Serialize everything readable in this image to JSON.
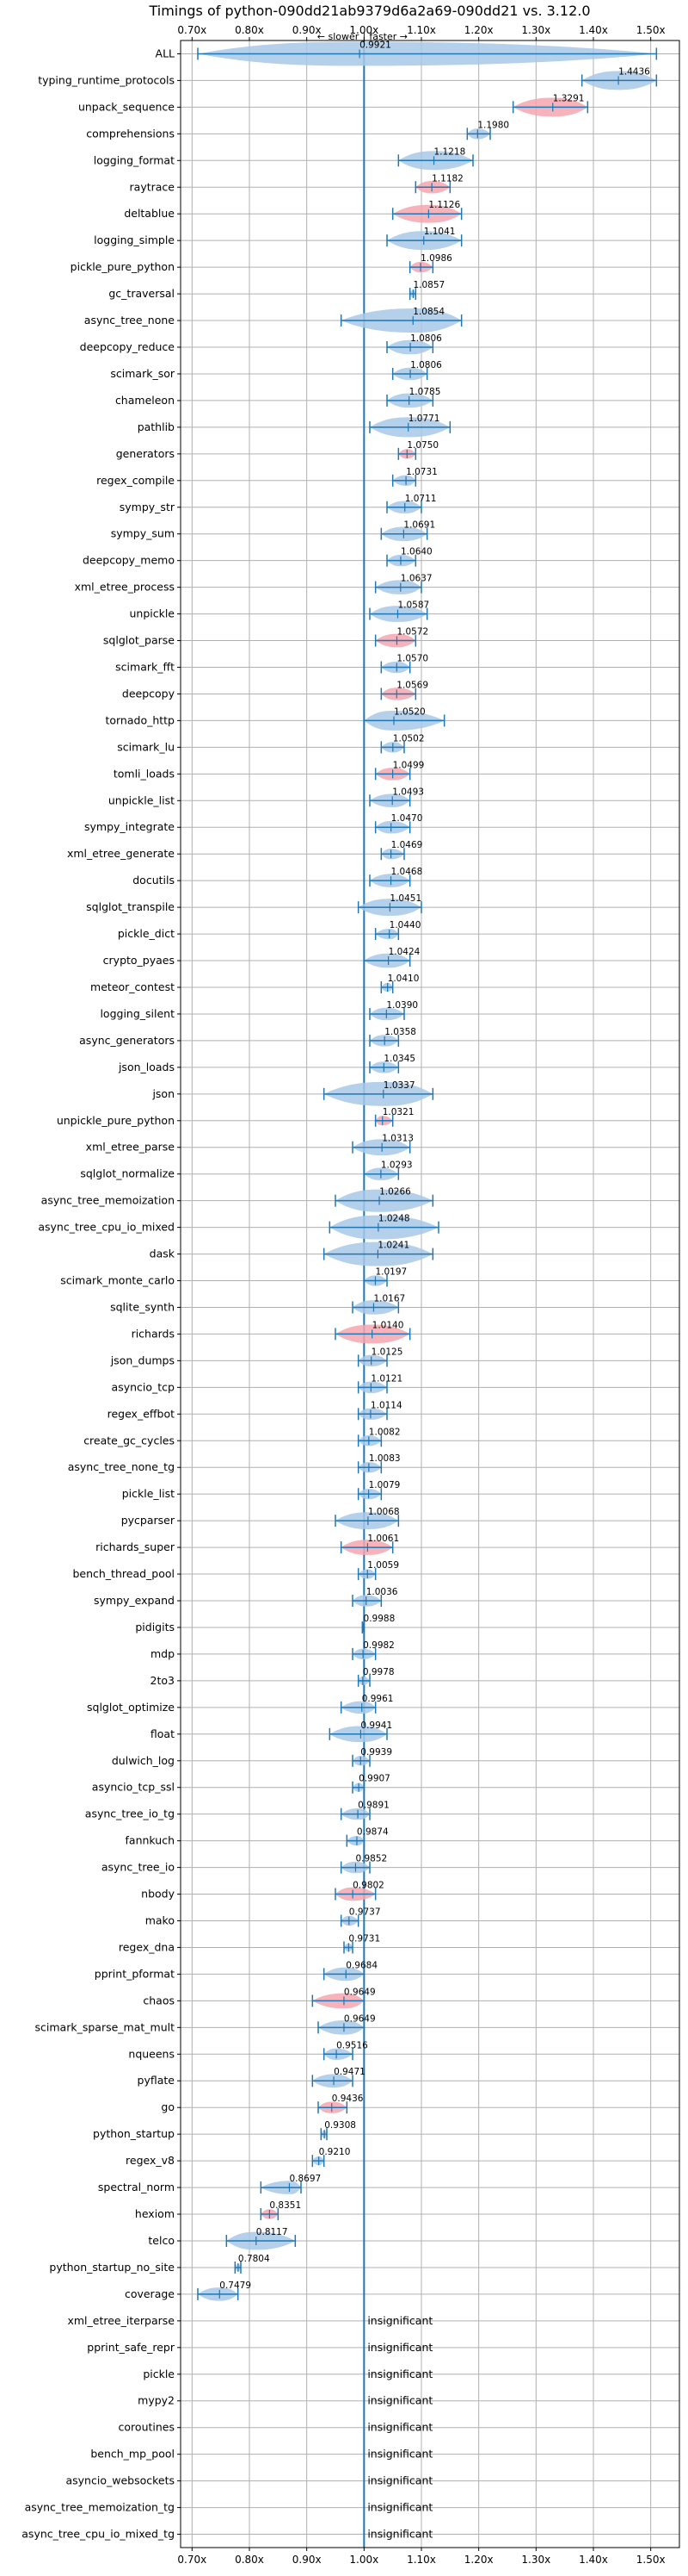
{
  "chart_data": {
    "type": "violin",
    "title": "Timings of python-090dd21ab9379d6a2a69-090dd21 vs. 3.12.0",
    "direction_slower": "← slower",
    "direction_faster": "faster →",
    "direction_separator": "|",
    "xlim": [
      0.68,
      1.55
    ],
    "x_ticks": [
      {
        "value": 0.7,
        "label": "0.70x"
      },
      {
        "value": 0.8,
        "label": "0.80x"
      },
      {
        "value": 0.9,
        "label": "0.90x"
      },
      {
        "value": 1.0,
        "label": "1.00x"
      },
      {
        "value": 1.1,
        "label": "1.10x"
      },
      {
        "value": 1.2,
        "label": "1.20x"
      },
      {
        "value": 1.3,
        "label": "1.30x"
      },
      {
        "value": 1.4,
        "label": "1.40x"
      },
      {
        "value": 1.5,
        "label": "1.50x"
      }
    ],
    "reference_line": 1.0,
    "insignificant_text": "insignificant",
    "benchmarks": [
      {
        "name": "ALL",
        "value": 0.9921,
        "label": "0.9921",
        "lo": 0.71,
        "hi": 1.51,
        "color": "blue"
      },
      {
        "name": "typing_runtime_protocols",
        "value": 1.4436,
        "label": "1.4436",
        "lo": 1.38,
        "hi": 1.51,
        "color": "blue"
      },
      {
        "name": "unpack_sequence",
        "value": 1.3291,
        "label": "1.3291",
        "lo": 1.26,
        "hi": 1.39,
        "color": "red"
      },
      {
        "name": "comprehensions",
        "value": 1.198,
        "label": "1.1980",
        "lo": 1.18,
        "hi": 1.22,
        "color": "blue"
      },
      {
        "name": "logging_format",
        "value": 1.1218,
        "label": "1.1218",
        "lo": 1.06,
        "hi": 1.19,
        "color": "blue"
      },
      {
        "name": "raytrace",
        "value": 1.1182,
        "label": "1.1182",
        "lo": 1.09,
        "hi": 1.15,
        "color": "red"
      },
      {
        "name": "deltablue",
        "value": 1.1126,
        "label": "1.1126",
        "lo": 1.05,
        "hi": 1.17,
        "color": "red"
      },
      {
        "name": "logging_simple",
        "value": 1.1041,
        "label": "1.1041",
        "lo": 1.04,
        "hi": 1.17,
        "color": "blue"
      },
      {
        "name": "pickle_pure_python",
        "value": 1.0986,
        "label": "1.0986",
        "lo": 1.08,
        "hi": 1.12,
        "color": "red"
      },
      {
        "name": "gc_traversal",
        "value": 1.0857,
        "label": "1.0857",
        "lo": 1.08,
        "hi": 1.09,
        "color": "blue"
      },
      {
        "name": "async_tree_none",
        "value": 1.0854,
        "label": "1.0854",
        "lo": 0.96,
        "hi": 1.17,
        "color": "blue"
      },
      {
        "name": "deepcopy_reduce",
        "value": 1.0806,
        "label": "1.0806",
        "lo": 1.04,
        "hi": 1.12,
        "color": "blue"
      },
      {
        "name": "scimark_sor",
        "value": 1.0806,
        "label": "1.0806",
        "lo": 1.05,
        "hi": 1.11,
        "color": "blue"
      },
      {
        "name": "chameleon",
        "value": 1.0785,
        "label": "1.0785",
        "lo": 1.04,
        "hi": 1.12,
        "color": "blue"
      },
      {
        "name": "pathlib",
        "value": 1.0771,
        "label": "1.0771",
        "lo": 1.01,
        "hi": 1.15,
        "color": "blue"
      },
      {
        "name": "generators",
        "value": 1.075,
        "label": "1.0750",
        "lo": 1.06,
        "hi": 1.09,
        "color": "red"
      },
      {
        "name": "regex_compile",
        "value": 1.0731,
        "label": "1.0731",
        "lo": 1.05,
        "hi": 1.09,
        "color": "blue"
      },
      {
        "name": "sympy_str",
        "value": 1.0711,
        "label": "1.0711",
        "lo": 1.04,
        "hi": 1.1,
        "color": "blue"
      },
      {
        "name": "sympy_sum",
        "value": 1.0691,
        "label": "1.0691",
        "lo": 1.03,
        "hi": 1.11,
        "color": "blue"
      },
      {
        "name": "deepcopy_memo",
        "value": 1.064,
        "label": "1.0640",
        "lo": 1.04,
        "hi": 1.09,
        "color": "blue"
      },
      {
        "name": "xml_etree_process",
        "value": 1.0637,
        "label": "1.0637",
        "lo": 1.02,
        "hi": 1.1,
        "color": "blue"
      },
      {
        "name": "unpickle",
        "value": 1.0587,
        "label": "1.0587",
        "lo": 1.01,
        "hi": 1.11,
        "color": "blue"
      },
      {
        "name": "sqlglot_parse",
        "value": 1.0572,
        "label": "1.0572",
        "lo": 1.02,
        "hi": 1.09,
        "color": "red"
      },
      {
        "name": "scimark_fft",
        "value": 1.057,
        "label": "1.0570",
        "lo": 1.03,
        "hi": 1.08,
        "color": "blue"
      },
      {
        "name": "deepcopy",
        "value": 1.0569,
        "label": "1.0569",
        "lo": 1.03,
        "hi": 1.09,
        "color": "red"
      },
      {
        "name": "tornado_http",
        "value": 1.052,
        "label": "1.0520",
        "lo": 1.0,
        "hi": 1.14,
        "color": "blue"
      },
      {
        "name": "scimark_lu",
        "value": 1.0502,
        "label": "1.0502",
        "lo": 1.03,
        "hi": 1.07,
        "color": "blue"
      },
      {
        "name": "tomli_loads",
        "value": 1.0499,
        "label": "1.0499",
        "lo": 1.02,
        "hi": 1.08,
        "color": "red"
      },
      {
        "name": "unpickle_list",
        "value": 1.0493,
        "label": "1.0493",
        "lo": 1.01,
        "hi": 1.08,
        "color": "blue"
      },
      {
        "name": "sympy_integrate",
        "value": 1.047,
        "label": "1.0470",
        "lo": 1.02,
        "hi": 1.08,
        "color": "blue"
      },
      {
        "name": "xml_etree_generate",
        "value": 1.0469,
        "label": "1.0469",
        "lo": 1.03,
        "hi": 1.07,
        "color": "blue"
      },
      {
        "name": "docutils",
        "value": 1.0468,
        "label": "1.0468",
        "lo": 1.01,
        "hi": 1.08,
        "color": "blue"
      },
      {
        "name": "sqlglot_transpile",
        "value": 1.0451,
        "label": "1.0451",
        "lo": 0.99,
        "hi": 1.1,
        "color": "blue"
      },
      {
        "name": "pickle_dict",
        "value": 1.044,
        "label": "1.0440",
        "lo": 1.02,
        "hi": 1.06,
        "color": "blue"
      },
      {
        "name": "crypto_pyaes",
        "value": 1.0424,
        "label": "1.0424",
        "lo": 1.0,
        "hi": 1.08,
        "color": "blue"
      },
      {
        "name": "meteor_contest",
        "value": 1.041,
        "label": "1.0410",
        "lo": 1.03,
        "hi": 1.05,
        "color": "blue"
      },
      {
        "name": "logging_silent",
        "value": 1.039,
        "label": "1.0390",
        "lo": 1.01,
        "hi": 1.07,
        "color": "blue"
      },
      {
        "name": "async_generators",
        "value": 1.0358,
        "label": "1.0358",
        "lo": 1.01,
        "hi": 1.06,
        "color": "blue"
      },
      {
        "name": "json_loads",
        "value": 1.0345,
        "label": "1.0345",
        "lo": 1.01,
        "hi": 1.06,
        "color": "blue"
      },
      {
        "name": "json",
        "value": 1.0337,
        "label": "1.0337",
        "lo": 0.93,
        "hi": 1.12,
        "color": "blue"
      },
      {
        "name": "unpickle_pure_python",
        "value": 1.0321,
        "label": "1.0321",
        "lo": 1.02,
        "hi": 1.05,
        "color": "red"
      },
      {
        "name": "xml_etree_parse",
        "value": 1.0313,
        "label": "1.0313",
        "lo": 0.98,
        "hi": 1.08,
        "color": "blue"
      },
      {
        "name": "sqlglot_normalize",
        "value": 1.0293,
        "label": "1.0293",
        "lo": 1.0,
        "hi": 1.06,
        "color": "blue"
      },
      {
        "name": "async_tree_memoization",
        "value": 1.0266,
        "label": "1.0266",
        "lo": 0.95,
        "hi": 1.12,
        "color": "blue"
      },
      {
        "name": "async_tree_cpu_io_mixed",
        "value": 1.0248,
        "label": "1.0248",
        "lo": 0.94,
        "hi": 1.13,
        "color": "blue"
      },
      {
        "name": "dask",
        "value": 1.0241,
        "label": "1.0241",
        "lo": 0.93,
        "hi": 1.12,
        "color": "blue"
      },
      {
        "name": "scimark_monte_carlo",
        "value": 1.0197,
        "label": "1.0197",
        "lo": 1.0,
        "hi": 1.04,
        "color": "blue"
      },
      {
        "name": "sqlite_synth",
        "value": 1.0167,
        "label": "1.0167",
        "lo": 0.98,
        "hi": 1.06,
        "color": "blue"
      },
      {
        "name": "richards",
        "value": 1.014,
        "label": "1.0140",
        "lo": 0.95,
        "hi": 1.08,
        "color": "red"
      },
      {
        "name": "json_dumps",
        "value": 1.0125,
        "label": "1.0125",
        "lo": 0.99,
        "hi": 1.04,
        "color": "blue"
      },
      {
        "name": "asyncio_tcp",
        "value": 1.0121,
        "label": "1.0121",
        "lo": 0.99,
        "hi": 1.04,
        "color": "blue"
      },
      {
        "name": "regex_effbot",
        "value": 1.0114,
        "label": "1.0114",
        "lo": 0.99,
        "hi": 1.04,
        "color": "blue"
      },
      {
        "name": "create_gc_cycles",
        "value": 1.0082,
        "label": "1.0082",
        "lo": 0.99,
        "hi": 1.03,
        "color": "blue"
      },
      {
        "name": "async_tree_none_tg",
        "value": 1.0083,
        "label": "1.0083",
        "lo": 0.99,
        "hi": 1.03,
        "color": "blue"
      },
      {
        "name": "pickle_list",
        "value": 1.0079,
        "label": "1.0079",
        "lo": 0.99,
        "hi": 1.03,
        "color": "blue"
      },
      {
        "name": "pycparser",
        "value": 1.0068,
        "label": "1.0068",
        "lo": 0.95,
        "hi": 1.06,
        "color": "blue"
      },
      {
        "name": "richards_super",
        "value": 1.0061,
        "label": "1.0061",
        "lo": 0.96,
        "hi": 1.05,
        "color": "red"
      },
      {
        "name": "bench_thread_pool",
        "value": 1.0059,
        "label": "1.0059",
        "lo": 0.99,
        "hi": 1.02,
        "color": "blue"
      },
      {
        "name": "sympy_expand",
        "value": 1.0036,
        "label": "1.0036",
        "lo": 0.98,
        "hi": 1.03,
        "color": "blue"
      },
      {
        "name": "pidigits",
        "value": 0.9988,
        "label": "0.9988",
        "lo": 0.997,
        "hi": 1.0,
        "color": "blue"
      },
      {
        "name": "mdp",
        "value": 0.9982,
        "label": "0.9982",
        "lo": 0.98,
        "hi": 1.02,
        "color": "blue"
      },
      {
        "name": "2to3",
        "value": 0.9978,
        "label": "0.9978",
        "lo": 0.99,
        "hi": 1.01,
        "color": "blue"
      },
      {
        "name": "sqlglot_optimize",
        "value": 0.9961,
        "label": "0.9961",
        "lo": 0.96,
        "hi": 1.02,
        "color": "blue"
      },
      {
        "name": "float",
        "value": 0.9941,
        "label": "0.9941",
        "lo": 0.94,
        "hi": 1.04,
        "color": "blue"
      },
      {
        "name": "dulwich_log",
        "value": 0.9939,
        "label": "0.9939",
        "lo": 0.98,
        "hi": 1.01,
        "color": "blue"
      },
      {
        "name": "asyncio_tcp_ssl",
        "value": 0.9907,
        "label": "0.9907",
        "lo": 0.98,
        "hi": 1.0,
        "color": "blue"
      },
      {
        "name": "async_tree_io_tg",
        "value": 0.9891,
        "label": "0.9891",
        "lo": 0.96,
        "hi": 1.01,
        "color": "blue"
      },
      {
        "name": "fannkuch",
        "value": 0.9874,
        "label": "0.9874",
        "lo": 0.97,
        "hi": 1.0,
        "color": "blue"
      },
      {
        "name": "async_tree_io",
        "value": 0.9852,
        "label": "0.9852",
        "lo": 0.96,
        "hi": 1.01,
        "color": "blue"
      },
      {
        "name": "nbody",
        "value": 0.9802,
        "label": "0.9802",
        "lo": 0.95,
        "hi": 1.02,
        "color": "red"
      },
      {
        "name": "mako",
        "value": 0.9737,
        "label": "0.9737",
        "lo": 0.96,
        "hi": 0.99,
        "color": "blue"
      },
      {
        "name": "regex_dna",
        "value": 0.9731,
        "label": "0.9731",
        "lo": 0.965,
        "hi": 0.98,
        "color": "blue"
      },
      {
        "name": "pprint_pformat",
        "value": 0.9684,
        "label": "0.9684",
        "lo": 0.93,
        "hi": 1.0,
        "color": "blue"
      },
      {
        "name": "chaos",
        "value": 0.9649,
        "label": "0.9649",
        "lo": 0.91,
        "hi": 1.0,
        "color": "red"
      },
      {
        "name": "scimark_sparse_mat_mult",
        "value": 0.9649,
        "label": "0.9649",
        "lo": 0.92,
        "hi": 1.0,
        "color": "blue"
      },
      {
        "name": "nqueens",
        "value": 0.9516,
        "label": "0.9516",
        "lo": 0.93,
        "hi": 0.98,
        "color": "blue"
      },
      {
        "name": "pyflate",
        "value": 0.9471,
        "label": "0.9471",
        "lo": 0.91,
        "hi": 0.98,
        "color": "blue"
      },
      {
        "name": "go",
        "value": 0.9436,
        "label": "0.9436",
        "lo": 0.92,
        "hi": 0.97,
        "color": "red"
      },
      {
        "name": "python_startup",
        "value": 0.9308,
        "label": "0.9308",
        "lo": 0.925,
        "hi": 0.935,
        "color": "blue"
      },
      {
        "name": "regex_v8",
        "value": 0.921,
        "label": "0.9210",
        "lo": 0.91,
        "hi": 0.93,
        "color": "blue"
      },
      {
        "name": "spectral_norm",
        "value": 0.8697,
        "label": "0.8697",
        "lo": 0.82,
        "hi": 0.89,
        "color": "blue"
      },
      {
        "name": "hexiom",
        "value": 0.8351,
        "label": "0.8351",
        "lo": 0.82,
        "hi": 0.85,
        "color": "red"
      },
      {
        "name": "telco",
        "value": 0.8117,
        "label": "0.8117",
        "lo": 0.76,
        "hi": 0.88,
        "color": "blue"
      },
      {
        "name": "python_startup_no_site",
        "value": 0.7804,
        "label": "0.7804",
        "lo": 0.775,
        "hi": 0.785,
        "color": "blue"
      },
      {
        "name": "coverage",
        "value": 0.7479,
        "label": "0.7479",
        "lo": 0.71,
        "hi": 0.78,
        "color": "blue"
      },
      {
        "name": "xml_etree_iterparse",
        "insignificant": true
      },
      {
        "name": "pprint_safe_repr",
        "insignificant": true
      },
      {
        "name": "pickle",
        "insignificant": true
      },
      {
        "name": "mypy2",
        "insignificant": true
      },
      {
        "name": "coroutines",
        "insignificant": true
      },
      {
        "name": "bench_mp_pool",
        "insignificant": true
      },
      {
        "name": "asyncio_websockets",
        "insignificant": true
      },
      {
        "name": "async_tree_memoization_tg",
        "insignificant": true
      },
      {
        "name": "async_tree_cpu_io_mixed_tg",
        "insignificant": true
      }
    ],
    "colors": {
      "blue_fill": "#a8c8e8",
      "red_fill": "#f4a6b0",
      "line": "#1f77b4",
      "grid": "#b0b0b0",
      "axis": "#000000"
    }
  }
}
